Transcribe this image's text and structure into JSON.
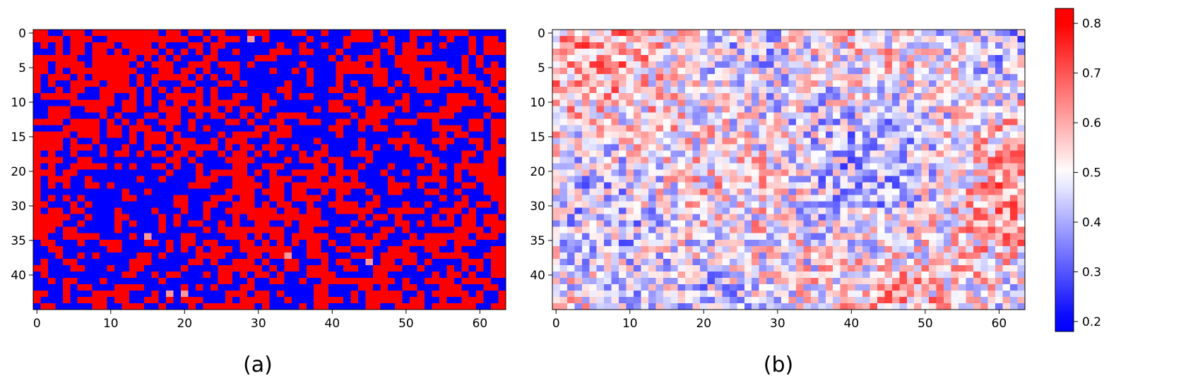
{
  "colors": {
    "low": "#0000ff",
    "mid": "#ffffff",
    "high": "#ff0000",
    "axis": "#000000"
  },
  "chart_data": [
    {
      "type": "heatmap",
      "panel_label": "(a)",
      "n_cols": 64,
      "n_rows": 44,
      "colormap": "bwr",
      "xticks": [
        0,
        10,
        20,
        30,
        40,
        50,
        60
      ],
      "yticks": [
        {
          "row": 0,
          "label": "0"
        },
        {
          "row": 5,
          "label": "5"
        },
        {
          "row": 10,
          "label": "10"
        },
        {
          "row": 15,
          "label": "15"
        },
        {
          "row": 20,
          "label": "20"
        },
        {
          "row": 25,
          "label": "30"
        },
        {
          "row": 30,
          "label": "35"
        },
        {
          "row": 35,
          "label": "40"
        }
      ],
      "value_range": [
        0.2,
        0.8
      ],
      "distribution": "binary",
      "seed": 17
    },
    {
      "type": "heatmap",
      "panel_label": "(b)",
      "n_cols": 64,
      "n_rows": 44,
      "colormap": "bwr",
      "xticks": [
        0,
        10,
        20,
        30,
        40,
        50,
        60
      ],
      "yticks": [
        {
          "row": 0,
          "label": "0"
        },
        {
          "row": 5,
          "label": "5"
        },
        {
          "row": 10,
          "label": "10"
        },
        {
          "row": 15,
          "label": "15"
        },
        {
          "row": 20,
          "label": "20"
        },
        {
          "row": 25,
          "label": "30"
        },
        {
          "row": 30,
          "label": "35"
        },
        {
          "row": 35,
          "label": "40"
        }
      ],
      "value_range": [
        0.2,
        0.8
      ],
      "distribution": "continuous",
      "seed": 42
    }
  ],
  "colorbar": {
    "ticks": [
      "0.2",
      "0.3",
      "0.4",
      "0.5",
      "0.6",
      "0.7",
      "0.8"
    ],
    "range": [
      0.18,
      0.83
    ]
  }
}
